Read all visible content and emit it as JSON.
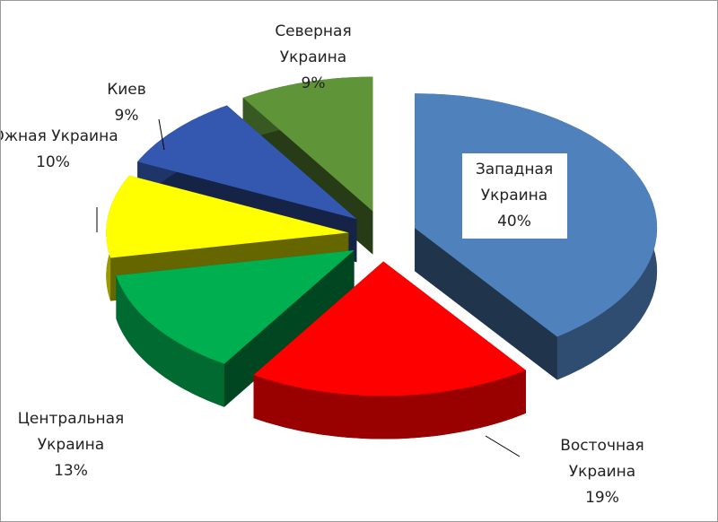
{
  "chart_data": {
    "type": "pie3d",
    "categories": [
      "Западная Украина",
      "Восточная Украина",
      "Центральная Украина",
      "Южная Украина",
      "Киев",
      "Северная Украина"
    ],
    "values": [
      40,
      19,
      13,
      10,
      9,
      9
    ],
    "value_labels": [
      "40%",
      "19%",
      "13%",
      "10%",
      "9%",
      "9%"
    ],
    "colors": [
      "#4f81bd",
      "#ff0000",
      "#00b050",
      "#ffff00",
      "#3458b0",
      "#5f9438"
    ]
  }
}
